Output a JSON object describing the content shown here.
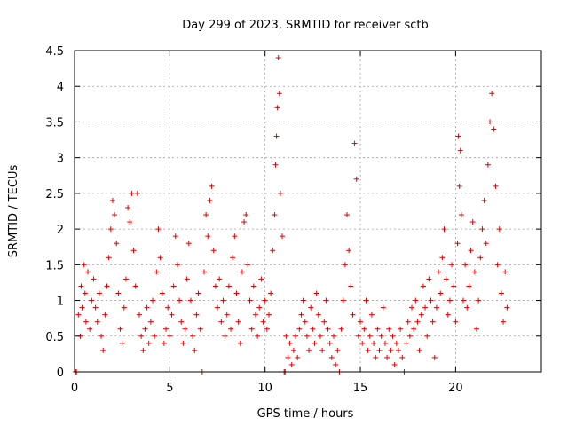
{
  "chart_data": {
    "type": "scatter",
    "title": "Day 299 of 2023, SRMTID for receiver sctb",
    "xlabel": "GPS time / hours",
    "ylabel": "SRMTID / TECUs",
    "xlim": [
      0,
      24.5
    ],
    "ylim": [
      0,
      4.5
    ],
    "xticks": [
      0,
      5,
      10,
      15,
      20
    ],
    "xtick_labels": [
      "0",
      "5",
      "10",
      "15",
      "20"
    ],
    "yticks": [
      0,
      0.5,
      1,
      1.5,
      2,
      2.5,
      3,
      3.5,
      4,
      4.5
    ],
    "ytick_labels": [
      "0",
      "0.5",
      "1",
      "1.5",
      "2",
      "2.5",
      "3",
      "3.5",
      "4",
      "4.5"
    ],
    "grid": true,
    "marker": "+",
    "marker_color": "#e00000",
    "series": [
      {
        "name": "SRMTID",
        "points": [
          [
            0.05,
            0.0
          ],
          [
            0.1,
            0.0
          ],
          [
            0.2,
            0.8
          ],
          [
            0.3,
            0.5
          ],
          [
            0.35,
            1.2
          ],
          [
            0.4,
            0.9
          ],
          [
            0.5,
            1.5
          ],
          [
            0.55,
            1.1
          ],
          [
            0.6,
            0.7
          ],
          [
            0.7,
            1.4
          ],
          [
            0.8,
            0.6
          ],
          [
            0.9,
            1.0
          ],
          [
            1.0,
            1.3
          ],
          [
            1.1,
            0.9
          ],
          [
            1.2,
            0.7
          ],
          [
            1.3,
            1.1
          ],
          [
            1.4,
            0.5
          ],
          [
            1.5,
            0.3
          ],
          [
            1.6,
            0.8
          ],
          [
            1.7,
            1.2
          ],
          [
            1.8,
            1.6
          ],
          [
            1.9,
            2.0
          ],
          [
            2.0,
            2.4
          ],
          [
            2.1,
            2.2
          ],
          [
            2.2,
            1.8
          ],
          [
            2.3,
            1.1
          ],
          [
            2.4,
            0.6
          ],
          [
            2.5,
            0.4
          ],
          [
            2.6,
            0.9
          ],
          [
            2.7,
            1.3
          ],
          [
            2.8,
            2.3
          ],
          [
            2.9,
            2.1
          ],
          [
            3.0,
            2.5
          ],
          [
            3.1,
            1.7
          ],
          [
            3.2,
            1.2
          ],
          [
            3.3,
            2.5
          ],
          [
            3.4,
            0.8
          ],
          [
            3.5,
            0.5
          ],
          [
            3.6,
            0.3
          ],
          [
            3.7,
            0.6
          ],
          [
            3.8,
            0.9
          ],
          [
            3.9,
            0.4
          ],
          [
            4.0,
            0.7
          ],
          [
            4.1,
            1.0
          ],
          [
            4.2,
            0.5
          ],
          [
            4.3,
            1.4
          ],
          [
            4.4,
            2.0
          ],
          [
            4.5,
            1.6
          ],
          [
            4.6,
            1.1
          ],
          [
            4.7,
            0.4
          ],
          [
            4.8,
            0.6
          ],
          [
            4.9,
            0.9
          ],
          [
            5.0,
            0.5
          ],
          [
            5.1,
            0.8
          ],
          [
            5.2,
            1.2
          ],
          [
            5.3,
            1.9
          ],
          [
            5.4,
            1.5
          ],
          [
            5.5,
            1.0
          ],
          [
            5.6,
            0.7
          ],
          [
            5.7,
            0.4
          ],
          [
            5.8,
            0.6
          ],
          [
            5.9,
            1.3
          ],
          [
            6.0,
            1.8
          ],
          [
            6.1,
            1.0
          ],
          [
            6.2,
            0.5
          ],
          [
            6.3,
            0.3
          ],
          [
            6.4,
            0.8
          ],
          [
            6.5,
            1.1
          ],
          [
            6.6,
            0.6
          ],
          [
            6.7,
            0.0
          ],
          [
            6.8,
            1.4
          ],
          [
            6.9,
            2.2
          ],
          [
            7.0,
            1.9
          ],
          [
            7.1,
            2.4
          ],
          [
            7.2,
            2.6
          ],
          [
            7.3,
            1.7
          ],
          [
            7.4,
            1.2
          ],
          [
            7.5,
            0.9
          ],
          [
            7.6,
            1.3
          ],
          [
            7.7,
            0.7
          ],
          [
            7.8,
            1.0
          ],
          [
            7.9,
            0.5
          ],
          [
            8.0,
            0.8
          ],
          [
            8.1,
            1.2
          ],
          [
            8.2,
            0.6
          ],
          [
            8.3,
            1.6
          ],
          [
            8.4,
            1.9
          ],
          [
            8.5,
            1.1
          ],
          [
            8.6,
            0.7
          ],
          [
            8.7,
            0.4
          ],
          [
            8.8,
            1.4
          ],
          [
            8.9,
            2.1
          ],
          [
            9.0,
            2.2
          ],
          [
            9.1,
            1.5
          ],
          [
            9.2,
            1.0
          ],
          [
            9.3,
            0.6
          ],
          [
            9.4,
            1.2
          ],
          [
            9.5,
            0.8
          ],
          [
            9.6,
            0.5
          ],
          [
            9.7,
            0.9
          ],
          [
            9.8,
            1.3
          ],
          [
            9.9,
            0.7
          ],
          [
            10.0,
            1.0
          ],
          [
            10.1,
            0.6
          ],
          [
            10.2,
            0.8
          ],
          [
            10.3,
            1.1
          ],
          [
            10.4,
            1.7
          ],
          [
            10.5,
            2.2
          ],
          [
            10.55,
            2.9
          ],
          [
            10.6,
            3.3
          ],
          [
            10.65,
            3.7
          ],
          [
            10.7,
            4.4
          ],
          [
            10.75,
            3.9
          ],
          [
            10.8,
            2.5
          ],
          [
            10.9,
            1.9
          ],
          [
            11.0,
            0.0
          ],
          [
            11.05,
            0.0
          ],
          [
            11.1,
            0.5
          ],
          [
            11.2,
            0.2
          ],
          [
            11.3,
            0.4
          ],
          [
            11.4,
            0.1
          ],
          [
            11.5,
            0.3
          ],
          [
            11.6,
            0.5
          ],
          [
            11.7,
            0.2
          ],
          [
            11.8,
            0.6
          ],
          [
            11.9,
            0.8
          ],
          [
            12.0,
            1.0
          ],
          [
            12.1,
            0.7
          ],
          [
            12.2,
            0.5
          ],
          [
            12.3,
            0.3
          ],
          [
            12.4,
            0.9
          ],
          [
            12.5,
            0.6
          ],
          [
            12.6,
            0.4
          ],
          [
            12.7,
            1.1
          ],
          [
            12.8,
            0.8
          ],
          [
            12.9,
            0.5
          ],
          [
            13.0,
            0.3
          ],
          [
            13.1,
            0.7
          ],
          [
            13.2,
            1.0
          ],
          [
            13.3,
            0.6
          ],
          [
            13.4,
            0.4
          ],
          [
            13.5,
            0.2
          ],
          [
            13.6,
            0.5
          ],
          [
            13.7,
            0.1
          ],
          [
            13.8,
            0.3
          ],
          [
            13.9,
            0.0
          ],
          [
            14.0,
            0.6
          ],
          [
            14.1,
            1.0
          ],
          [
            14.2,
            1.5
          ],
          [
            14.3,
            2.2
          ],
          [
            14.4,
            1.7
          ],
          [
            14.5,
            1.2
          ],
          [
            14.6,
            0.8
          ],
          [
            14.7,
            3.2
          ],
          [
            14.8,
            2.7
          ],
          [
            14.9,
            0.5
          ],
          [
            15.0,
            0.7
          ],
          [
            15.1,
            0.4
          ],
          [
            15.2,
            0.6
          ],
          [
            15.3,
            1.0
          ],
          [
            15.4,
            0.3
          ],
          [
            15.5,
            0.5
          ],
          [
            15.6,
            0.8
          ],
          [
            15.7,
            0.4
          ],
          [
            15.8,
            0.2
          ],
          [
            15.9,
            0.6
          ],
          [
            16.0,
            0.3
          ],
          [
            16.1,
            0.5
          ],
          [
            16.2,
            0.9
          ],
          [
            16.3,
            0.4
          ],
          [
            16.4,
            0.2
          ],
          [
            16.5,
            0.6
          ],
          [
            16.6,
            0.3
          ],
          [
            16.7,
            0.5
          ],
          [
            16.8,
            0.1
          ],
          [
            16.9,
            0.4
          ],
          [
            17.0,
            0.3
          ],
          [
            17.1,
            0.6
          ],
          [
            17.2,
            0.2
          ],
          [
            17.3,
            0.0
          ],
          [
            17.4,
            0.4
          ],
          [
            17.5,
            0.7
          ],
          [
            17.6,
            0.5
          ],
          [
            17.7,
            0.9
          ],
          [
            17.8,
            0.6
          ],
          [
            17.9,
            1.0
          ],
          [
            18.0,
            0.7
          ],
          [
            18.1,
            0.3
          ],
          [
            18.2,
            0.8
          ],
          [
            18.3,
            1.2
          ],
          [
            18.4,
            0.9
          ],
          [
            18.5,
            0.5
          ],
          [
            18.6,
            1.3
          ],
          [
            18.7,
            1.0
          ],
          [
            18.8,
            0.7
          ],
          [
            18.9,
            0.2
          ],
          [
            19.0,
            0.9
          ],
          [
            19.1,
            1.4
          ],
          [
            19.2,
            1.1
          ],
          [
            19.3,
            1.6
          ],
          [
            19.4,
            2.0
          ],
          [
            19.5,
            1.3
          ],
          [
            19.6,
            0.8
          ],
          [
            19.7,
            1.0
          ],
          [
            19.8,
            1.5
          ],
          [
            19.9,
            1.2
          ],
          [
            20.0,
            0.7
          ],
          [
            20.1,
            1.8
          ],
          [
            20.15,
            3.3
          ],
          [
            20.2,
            2.6
          ],
          [
            20.25,
            3.1
          ],
          [
            20.3,
            2.2
          ],
          [
            20.4,
            1.0
          ],
          [
            20.5,
            1.5
          ],
          [
            20.6,
            0.9
          ],
          [
            20.7,
            1.2
          ],
          [
            20.8,
            1.7
          ],
          [
            20.9,
            2.1
          ],
          [
            21.0,
            1.4
          ],
          [
            21.1,
            0.6
          ],
          [
            21.2,
            1.0
          ],
          [
            21.3,
            1.6
          ],
          [
            21.4,
            2.0
          ],
          [
            21.5,
            2.4
          ],
          [
            21.6,
            1.8
          ],
          [
            21.7,
            2.9
          ],
          [
            21.8,
            3.5
          ],
          [
            21.9,
            3.9
          ],
          [
            22.0,
            3.4
          ],
          [
            22.1,
            2.6
          ],
          [
            22.2,
            1.5
          ],
          [
            22.3,
            2.0
          ],
          [
            22.4,
            1.1
          ],
          [
            22.5,
            0.7
          ],
          [
            22.6,
            1.4
          ],
          [
            22.7,
            0.9
          ]
        ]
      }
    ]
  }
}
